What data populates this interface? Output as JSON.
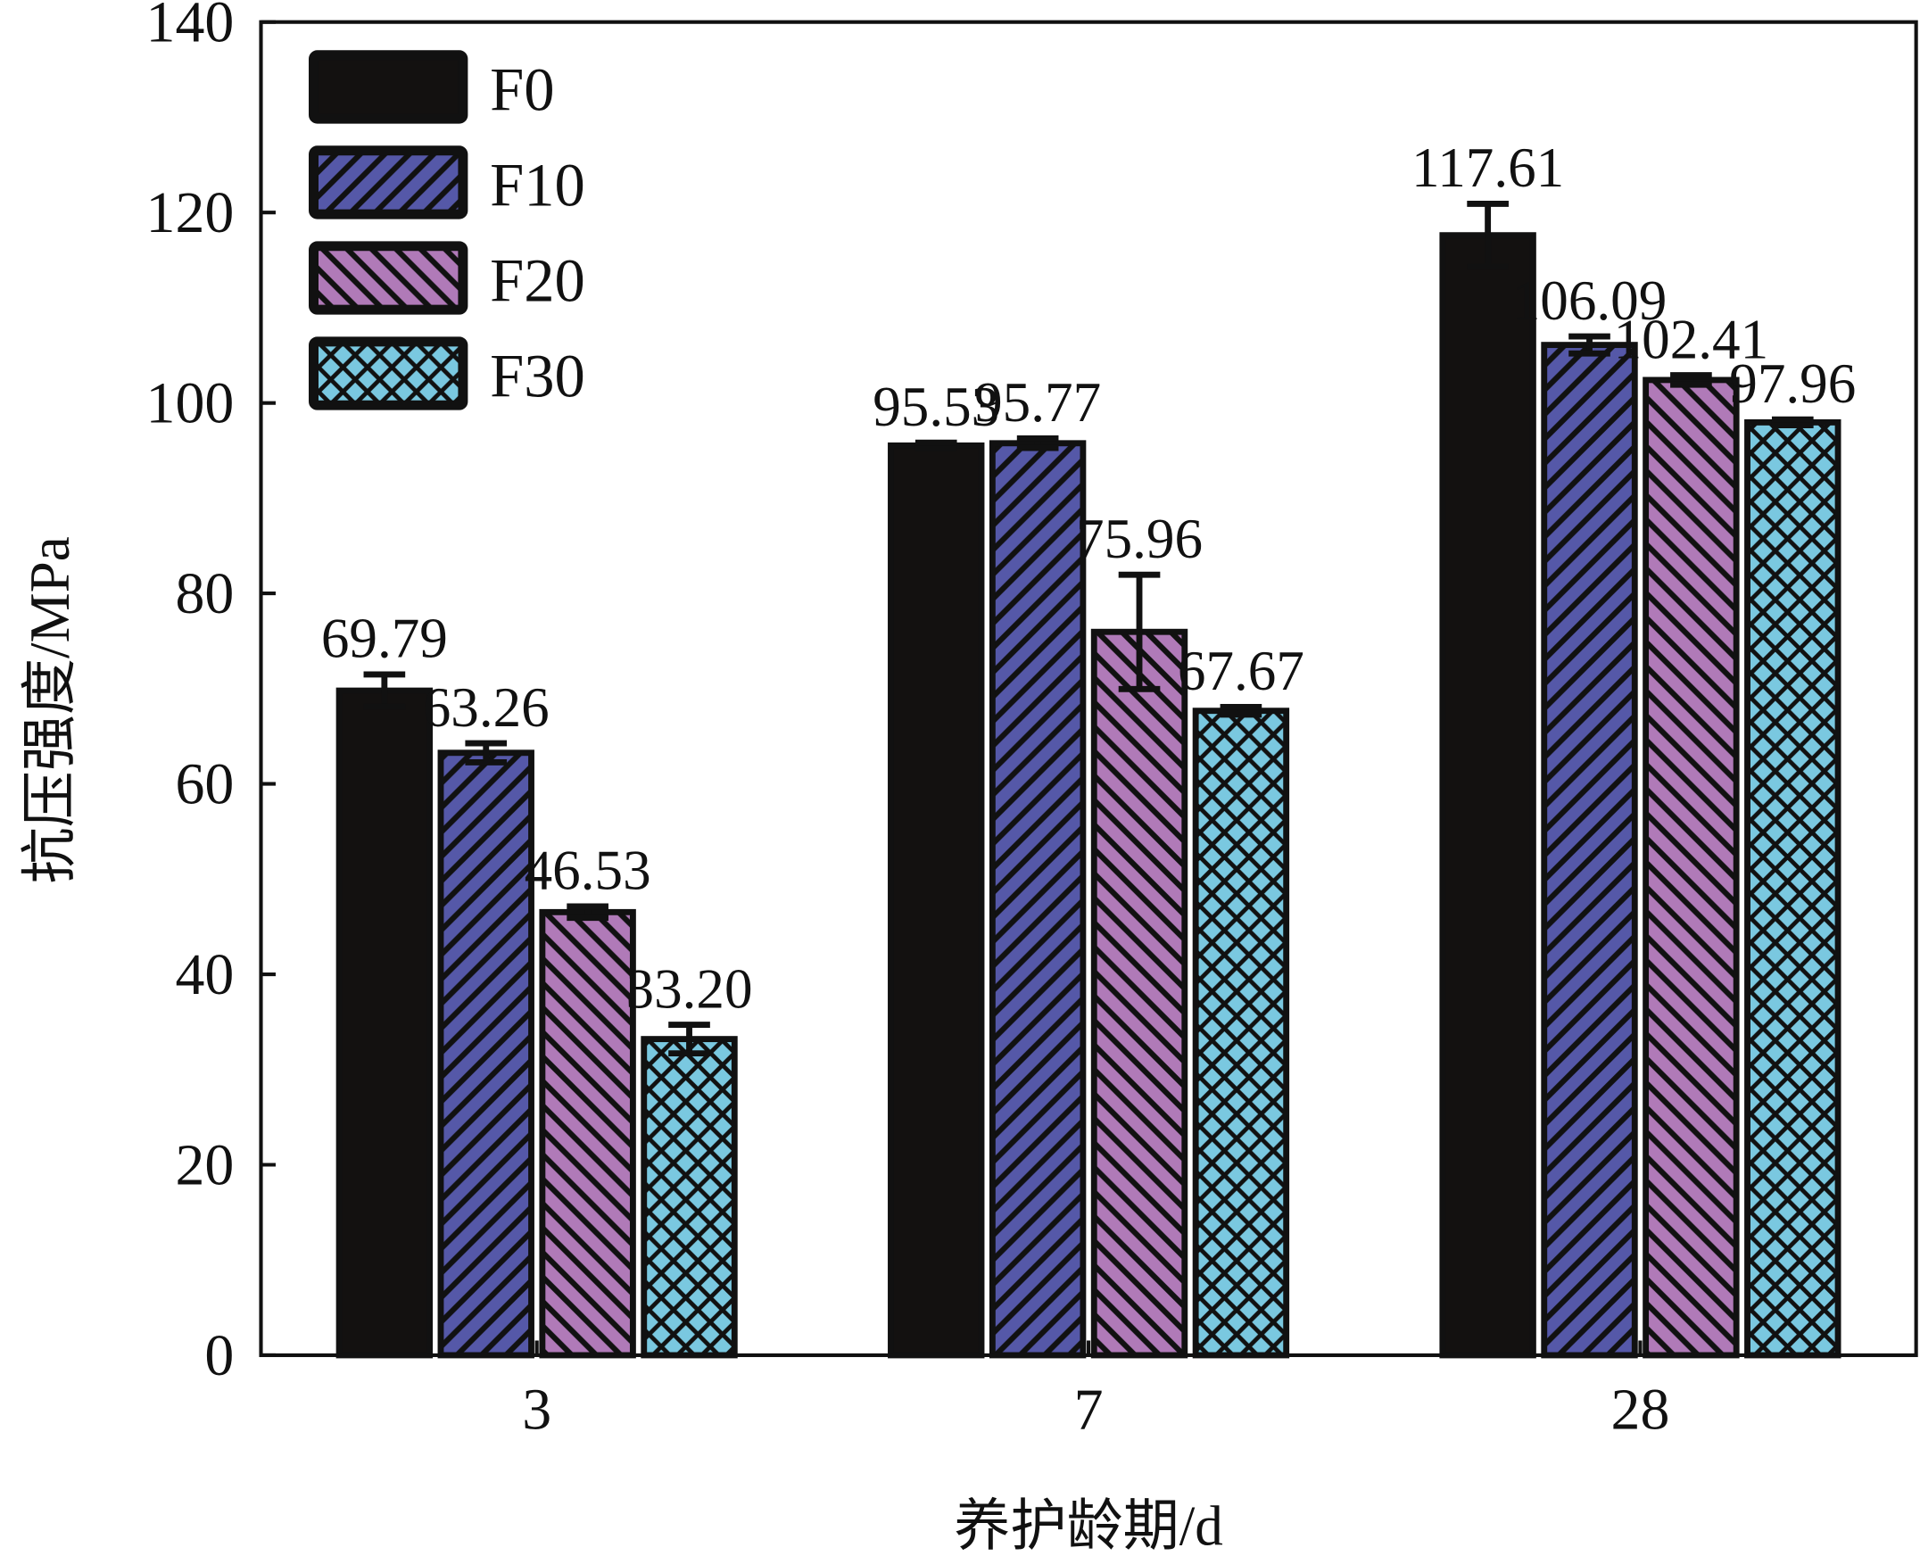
{
  "chart_data": {
    "type": "bar",
    "title": "",
    "xlabel": "养护龄期/d",
    "ylabel": "抗压强度/MPa",
    "categories": [
      "3",
      "7",
      "28"
    ],
    "ylim": [
      0,
      140
    ],
    "yticks": [
      0,
      20,
      40,
      60,
      80,
      100,
      120,
      140
    ],
    "grid": false,
    "legend_position": "top-left",
    "series": [
      {
        "name": "F0",
        "color": "#131110",
        "pattern": "solid",
        "values": [
          69.79,
          95.53,
          117.61
        ],
        "labels": [
          "69.79",
          "95.53",
          "117.61"
        ],
        "errors": [
          1.7,
          0.3,
          3.3
        ]
      },
      {
        "name": "F10",
        "color": "#5558a8",
        "pattern": "diagonal-up",
        "values": [
          63.26,
          95.77,
          106.09
        ],
        "labels": [
          "63.26",
          "95.77",
          "106.09"
        ],
        "errors": [
          1.0,
          0.5,
          0.9
        ]
      },
      {
        "name": "F20",
        "color": "#b07ab8",
        "pattern": "diagonal-down",
        "values": [
          46.53,
          75.96,
          102.41
        ],
        "labels": [
          "46.53",
          "75.96",
          "102.41"
        ],
        "errors": [
          0.6,
          6.0,
          0.5
        ]
      },
      {
        "name": "F30",
        "color": "#7ac8e0",
        "pattern": "crosshatch",
        "values": [
          33.2,
          67.67,
          97.96
        ],
        "labels": [
          "33.20",
          "67.67",
          "97.96"
        ],
        "errors": [
          1.5,
          0.4,
          0.3
        ]
      }
    ]
  }
}
